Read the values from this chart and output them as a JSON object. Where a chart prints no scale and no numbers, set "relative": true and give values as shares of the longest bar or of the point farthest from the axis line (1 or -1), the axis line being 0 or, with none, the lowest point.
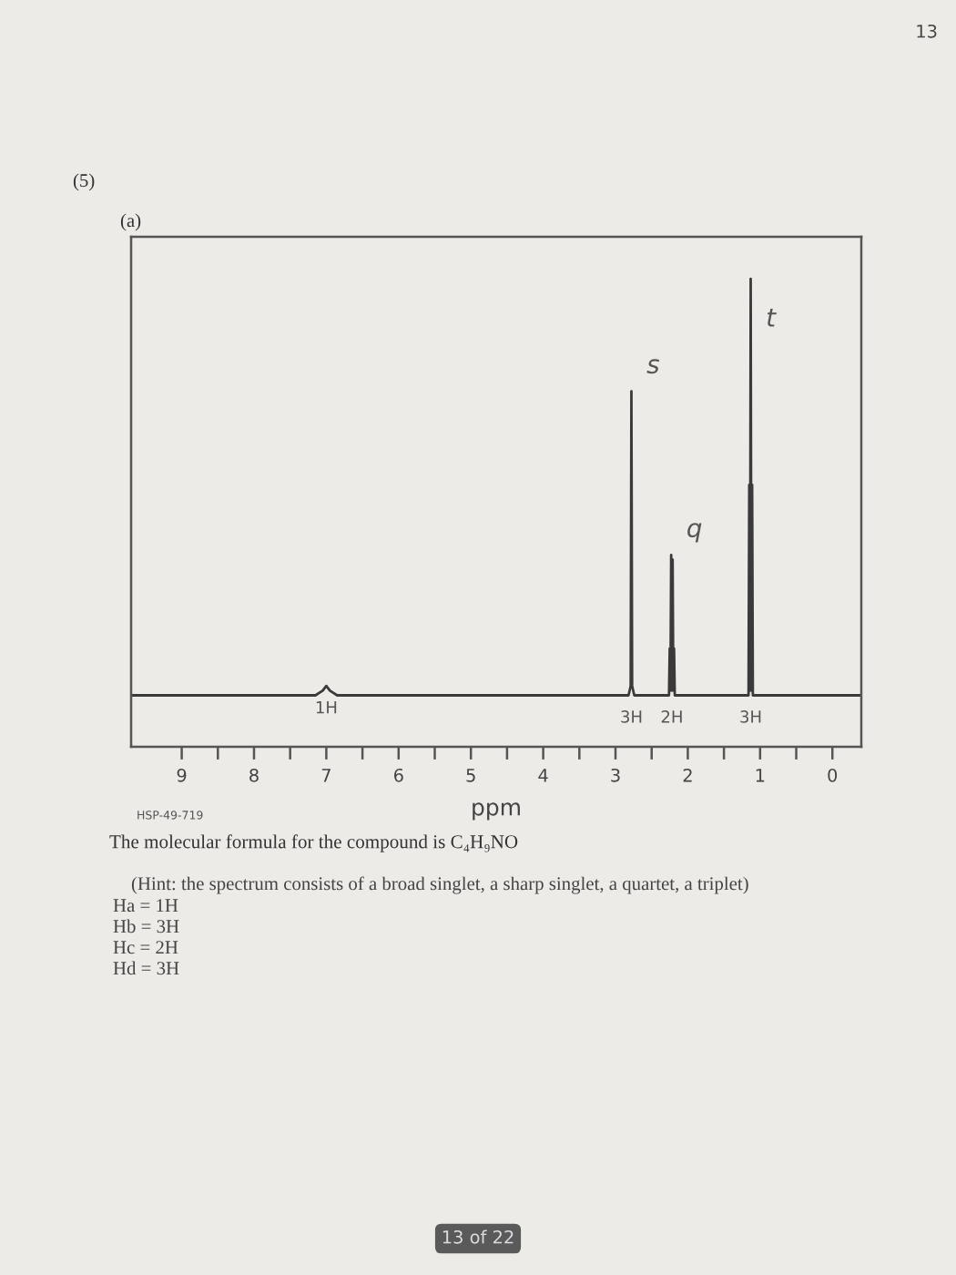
{
  "chart_data": {
    "type": "line",
    "title": "(5)",
    "subtitle": "(a)",
    "xlabel": "ppm",
    "relative": true,
    "tick_labels": "x",
    "xlim": [
      9.7,
      -0.4
    ],
    "xticks": [
      9,
      {
        "value": 8.5,
        "label": null
      },
      8,
      {
        "value": 7.5,
        "label": null
      },
      7,
      {
        "value": 6.5,
        "label": null
      },
      6,
      {
        "value": 5.5,
        "label": null
      },
      5,
      {
        "value": 4.5,
        "label": null
      },
      4,
      {
        "value": 3.5,
        "label": null
      },
      3,
      {
        "value": 2.5,
        "label": null
      },
      2,
      {
        "value": 1.5,
        "label": null
      },
      1,
      {
        "value": 0.5,
        "label": null
      },
      0
    ],
    "x": [
      9.7,
      7.15,
      7.05,
      7.0,
      6.95,
      6.85,
      2.82,
      2.79,
      2.78,
      2.77,
      2.74,
      2.26,
      2.25,
      2.24,
      2.23,
      2.22,
      2.21,
      2.2,
      2.19,
      2.18,
      1.16,
      1.15,
      1.14,
      1.13,
      1.12,
      1.11,
      1.1,
      -0.4
    ],
    "series": [
      {
        "color": "#3a3a3a",
        "values": [
          0.11,
          0.11,
          0.12,
          0.13,
          0.12,
          0.11,
          0.11,
          0.13,
          0.76,
          0.13,
          0.11,
          0.11,
          0.21,
          0.12,
          0.41,
          0.12,
          0.4,
          0.12,
          0.21,
          0.11,
          0.11,
          0.56,
          0.12,
          1,
          0.12,
          0.56,
          0.11,
          0.11
        ]
      }
    ],
    "annotations": [
      "13",
      "HSP-49-719",
      "The molecular formula for the compound is C₄H₉NO",
      "(Hint: the spectrum consists of a broad singlet, a sharp singlet, a quartet, a triplet)",
      "Ha = 1H",
      "Hb = 3H",
      "Hc = 2H",
      "Hd = 3H",
      "13 of 22",
      {
        "text": "s",
        "x": 2.78,
        "y": 0.76
      },
      {
        "text": "q",
        "x": 2.23,
        "y": 0.41
      },
      {
        "text": "t",
        "x": 1.13,
        "y": 0.86
      },
      {
        "text": "1H",
        "x": 7.0,
        "y": 0.13
      },
      {
        "text": "3H",
        "x": 2.78,
        "y": 0.11
      },
      {
        "text": "2H",
        "x": 2.22,
        "y": 0.11
      },
      {
        "text": "3H",
        "x": 1.13,
        "y": 0.11
      }
    ]
  }
}
